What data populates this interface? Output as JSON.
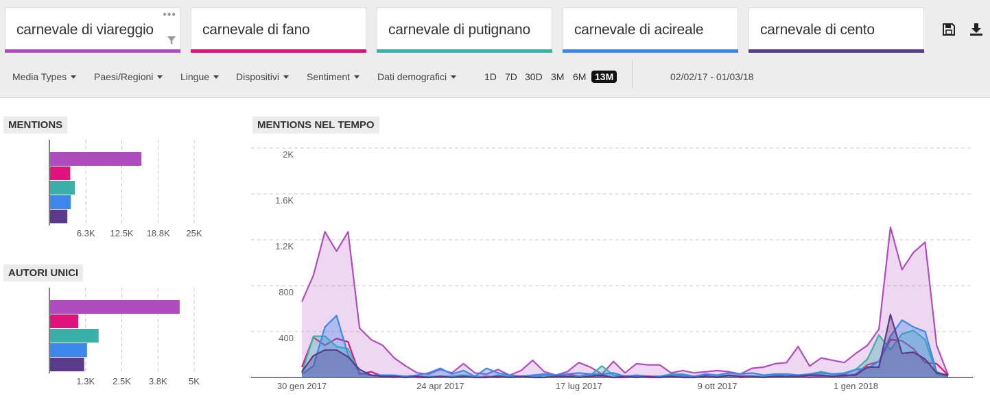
{
  "queries": [
    {
      "text": "carnevale di viareggio",
      "color": "#b04cbf"
    },
    {
      "text": "carnevale di fano",
      "color": "#e0127c"
    },
    {
      "text": "carnevale di putignano",
      "color": "#3bb0a8"
    },
    {
      "text": "carnevale di acireale",
      "color": "#3d86ec"
    },
    {
      "text": "carnevale di cento",
      "color": "#5a3a8a"
    }
  ],
  "query_box_icons": {
    "more": "more-dots-icon",
    "filter": "filter-funnel-icon"
  },
  "toolbar_icons": {
    "save": "save-icon",
    "download": "download-icon"
  },
  "filters": [
    "Media Types",
    "Paesi/Regioni",
    "Lingue",
    "Dispositivi",
    "Sentiment",
    "Dati demografici"
  ],
  "ranges": [
    "1D",
    "7D",
    "30D",
    "3M",
    "6M",
    "13M"
  ],
  "active_range": "13M",
  "date_range": "02/02/17 - 01/03/18",
  "mentions_label": "MENTIONS",
  "authors_label": "AUTORI UNICI",
  "timeline_label": "MENTIONS NEL TEMPO",
  "chart_data": [
    {
      "type": "bar",
      "title": "MENTIONS",
      "orientation": "horizontal",
      "categories": [
        "carnevale di viareggio",
        "carnevale di fano",
        "carnevale di putignano",
        "carnevale di acireale",
        "carnevale di cento"
      ],
      "values": [
        15900,
        3600,
        4400,
        3700,
        3100
      ],
      "colors": [
        "#b04cbf",
        "#e0127c",
        "#3bb0a8",
        "#3d86ec",
        "#5a3a8a"
      ],
      "xticks": [
        "6.3K",
        "12.5K",
        "18.8K",
        "25K"
      ],
      "xtick_values": [
        6300,
        12500,
        18800,
        25000
      ],
      "xlim": [
        0,
        25000
      ],
      "grid": true
    },
    {
      "type": "bar",
      "title": "AUTORI UNICI",
      "orientation": "horizontal",
      "categories": [
        "carnevale di viareggio",
        "carnevale di fano",
        "carnevale di putignano",
        "carnevale di acireale",
        "carnevale di cento"
      ],
      "values": [
        4500,
        1000,
        1700,
        1300,
        1200
      ],
      "colors": [
        "#b04cbf",
        "#e0127c",
        "#3bb0a8",
        "#3d86ec",
        "#5a3a8a"
      ],
      "xticks": [
        "1.3K",
        "2.5K",
        "3.8K",
        "5K"
      ],
      "xtick_values": [
        1250,
        2500,
        3750,
        5000
      ],
      "xlim": [
        0,
        5000
      ],
      "grid": true
    },
    {
      "type": "area",
      "title": "MENTIONS NEL TEMPO",
      "x_start": "2017-01-30",
      "x_step": "weekly",
      "xticks": [
        "30 gen 2017",
        "24 apr 2017",
        "17 lug 2017",
        "9 ott 2017",
        "1 gen 2018"
      ],
      "xtick_index": [
        0,
        12,
        24,
        36,
        48
      ],
      "yticks": [
        "400",
        "800",
        "1.2K",
        "1.6K",
        "2K"
      ],
      "ytick_values": [
        400,
        800,
        1200,
        1600,
        2000
      ],
      "ylim": [
        0,
        2000
      ],
      "grid": true,
      "series": [
        {
          "name": "carnevale di viareggio",
          "color": "#b04cbf",
          "fill": true,
          "values": [
            660,
            890,
            1270,
            1100,
            1270,
            430,
            330,
            280,
            170,
            100,
            40,
            30,
            70,
            40,
            120,
            40,
            30,
            70,
            20,
            60,
            150,
            50,
            20,
            50,
            130,
            90,
            30,
            140,
            40,
            120,
            110,
            110,
            40,
            60,
            40,
            50,
            60,
            50,
            30,
            80,
            90,
            120,
            130,
            270,
            100,
            170,
            150,
            130,
            210,
            280,
            420,
            1310,
            940,
            1090,
            1180,
            280,
            20
          ]
        },
        {
          "name": "carnevale di fano",
          "color": "#e0127c",
          "fill": false,
          "values": [
            90,
            350,
            280,
            340,
            310,
            30,
            50,
            10,
            0,
            10,
            0,
            0,
            10,
            10,
            20,
            0,
            10,
            0,
            10,
            10,
            0,
            20,
            10,
            30,
            10,
            30,
            10,
            0,
            0,
            10,
            0,
            0,
            20,
            10,
            0,
            20,
            10,
            20,
            0,
            10,
            0,
            10,
            30,
            10,
            0,
            10,
            10,
            10,
            30,
            110,
            140,
            330,
            320,
            250,
            130,
            120,
            20
          ]
        },
        {
          "name": "carnevale di putignano",
          "color": "#3bb0a8",
          "fill": true,
          "values": [
            40,
            360,
            360,
            270,
            250,
            40,
            20,
            10,
            10,
            0,
            10,
            10,
            10,
            10,
            20,
            10,
            0,
            20,
            10,
            10,
            10,
            20,
            10,
            10,
            10,
            20,
            100,
            20,
            10,
            0,
            10,
            10,
            30,
            30,
            10,
            10,
            20,
            10,
            10,
            10,
            10,
            20,
            30,
            20,
            30,
            50,
            30,
            40,
            70,
            160,
            370,
            240,
            380,
            410,
            330,
            30,
            10
          ]
        },
        {
          "name": "carnevale di acireale",
          "color": "#3d86ec",
          "fill": true,
          "values": [
            30,
            100,
            440,
            540,
            200,
            40,
            20,
            20,
            20,
            10,
            20,
            40,
            80,
            30,
            60,
            10,
            80,
            40,
            20,
            10,
            20,
            30,
            20,
            30,
            40,
            30,
            30,
            40,
            10,
            20,
            10,
            10,
            20,
            20,
            10,
            30,
            20,
            40,
            30,
            40,
            20,
            30,
            30,
            20,
            30,
            40,
            30,
            30,
            70,
            80,
            140,
            360,
            500,
            440,
            400,
            50,
            10
          ]
        },
        {
          "name": "carnevale di cento",
          "color": "#5a3a8a",
          "fill": true,
          "values": [
            50,
            190,
            240,
            240,
            180,
            70,
            20,
            10,
            10,
            0,
            10,
            0,
            10,
            0,
            10,
            0,
            0,
            10,
            0,
            10,
            0,
            0,
            10,
            10,
            0,
            10,
            20,
            0,
            10,
            0,
            10,
            0,
            10,
            0,
            0,
            10,
            0,
            20,
            10,
            10,
            0,
            10,
            10,
            10,
            20,
            20,
            10,
            20,
            20,
            90,
            90,
            550,
            210,
            220,
            160,
            40,
            20
          ]
        }
      ]
    }
  ]
}
